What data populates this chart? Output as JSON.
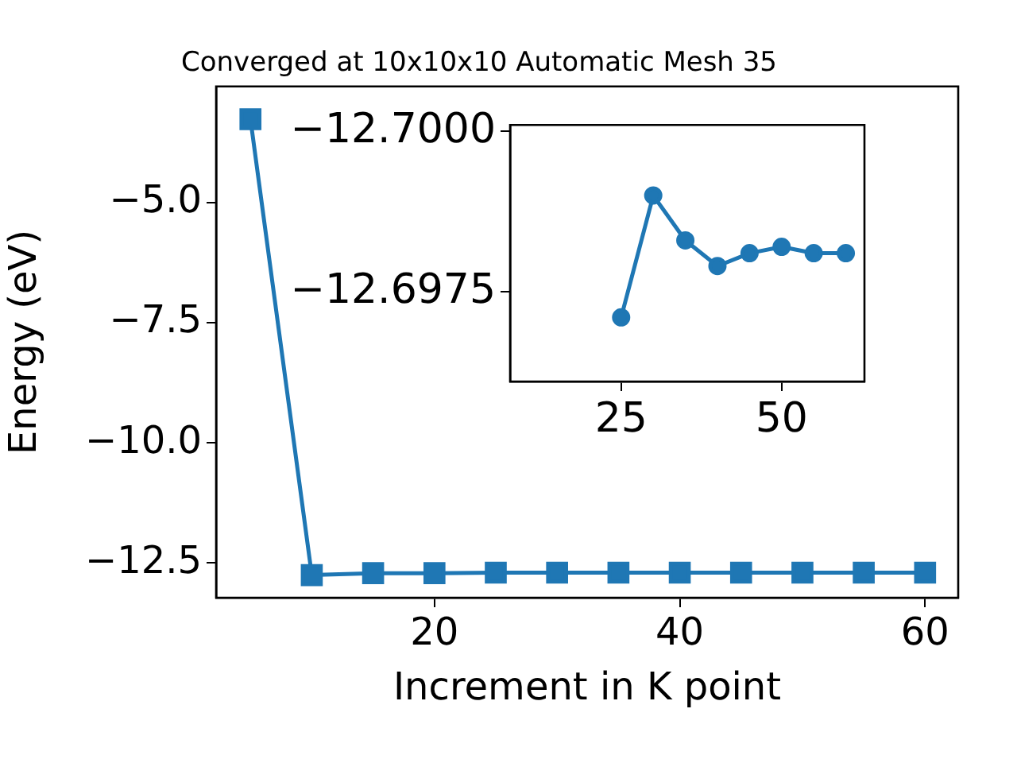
{
  "chart_data": [
    {
      "type": "line",
      "title": "Converged at 10x10x10 Automatic Mesh 35",
      "xlabel": "Increment in K point",
      "ylabel": "Energy (eV)",
      "x": [
        5,
        10,
        15,
        20,
        25,
        30,
        35,
        40,
        45,
        50,
        55,
        60
      ],
      "series": [
        {
          "color": "#1f77b4",
          "values": [
            -3.27,
            -12.75,
            -12.71,
            -12.71,
            -12.7,
            -12.7,
            -12.7,
            -12.7,
            -12.7,
            -12.7,
            -12.7,
            -12.7
          ]
        }
      ],
      "xlim": [
        2.2,
        62.7
      ],
      "xticks": [
        20,
        40,
        60
      ],
      "ylim": [
        -13.22,
        -2.59
      ],
      "yticks": [
        {
          "value": -12.5,
          "label": "−12.5"
        },
        {
          "value": -10,
          "label": "−10.0"
        },
        {
          "value": -7.5,
          "label": "−7.5"
        },
        {
          "value": -5,
          "label": "−5.0"
        }
      ],
      "marker": "square",
      "grid": false,
      "legend": false
    },
    {
      "type": "line",
      "x": [
        25,
        30,
        35,
        40,
        45,
        50,
        55,
        60
      ],
      "series": [
        {
          "color": "#1f77b4",
          "values": [
            -12.6971,
            -12.699,
            -12.6983,
            -12.6979,
            -12.6981,
            -12.6982,
            -12.6981,
            -12.6981
          ]
        }
      ],
      "xlim": [
        7.7,
        62.9
      ],
      "xticks": [
        25,
        50
      ],
      "ylim": [
        -12.6961,
        -12.7001
      ],
      "yticks": [
        {
          "value": -12.7,
          "label": "−12.7000"
        },
        {
          "value": -12.6975,
          "label": "−12.6975"
        }
      ],
      "marker": "circle",
      "grid": false,
      "legend": false
    }
  ]
}
